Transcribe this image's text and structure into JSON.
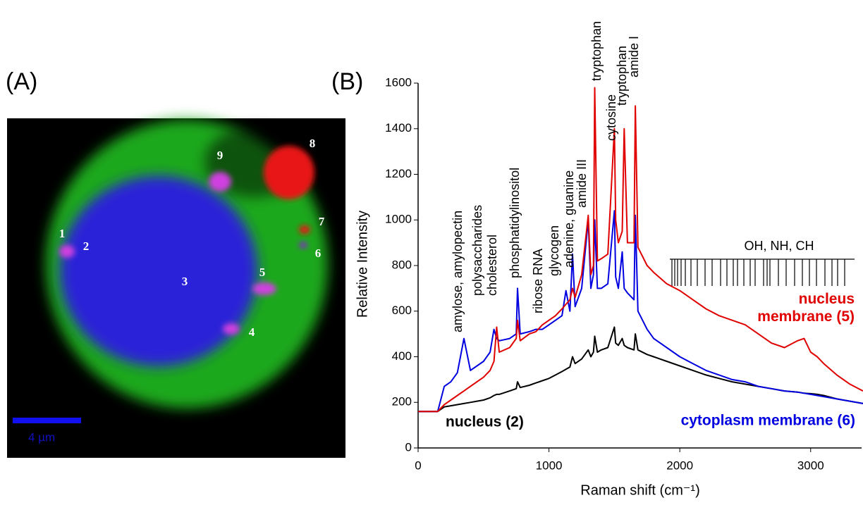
{
  "panel_a": {
    "label": "(A)",
    "spots": [
      "1",
      "2",
      "3",
      "4",
      "5",
      "6",
      "7",
      "8",
      "9"
    ],
    "scale_bar": "4 µm"
  },
  "chart_data": {
    "type": "line",
    "panel_label": "(B)",
    "xlabel": "Raman shift (cm⁻¹)",
    "ylabel": "Relative Intensity",
    "xlim": [
      0,
      3400
    ],
    "ylim": [
      0,
      1600
    ],
    "xticks": [
      0,
      1000,
      2000,
      3000
    ],
    "yticks": [
      0,
      200,
      400,
      600,
      800,
      1000,
      1200,
      1400,
      1600
    ],
    "x": [
      0,
      150,
      200,
      250,
      300,
      350,
      400,
      450,
      500,
      550,
      580,
      600,
      620,
      700,
      750,
      760,
      780,
      850,
      900,
      950,
      1000,
      1050,
      1100,
      1130,
      1160,
      1180,
      1200,
      1250,
      1300,
      1320,
      1340,
      1350,
      1370,
      1400,
      1450,
      1500,
      1510,
      1530,
      1560,
      1575,
      1600,
      1650,
      1660,
      1680,
      1750,
      1800,
      1900,
      2000,
      2100,
      2200,
      2300,
      2400,
      2500,
      2600,
      2700,
      2800,
      2900,
      2950,
      3000,
      3050,
      3100,
      3200,
      3300,
      3400
    ],
    "series": [
      {
        "name": "nucleus membrane (5)",
        "color": "#e00000",
        "values": [
          160,
          160,
          190,
          210,
          230,
          250,
          270,
          290,
          310,
          340,
          380,
          530,
          420,
          440,
          480,
          560,
          470,
          500,
          510,
          540,
          560,
          580,
          610,
          630,
          650,
          700,
          660,
          760,
          1020,
          760,
          800,
          1580,
          820,
          830,
          850,
          1400,
          1000,
          900,
          950,
          1400,
          900,
          900,
          1500,
          880,
          800,
          770,
          720,
          690,
          650,
          610,
          580,
          560,
          540,
          500,
          460,
          440,
          470,
          480,
          420,
          400,
          370,
          320,
          280,
          250
        ]
      },
      {
        "name": "cytoplasm membrane (6)",
        "color": "#0000e0",
        "values": [
          160,
          160,
          270,
          290,
          330,
          480,
          340,
          360,
          380,
          420,
          520,
          480,
          470,
          480,
          500,
          700,
          500,
          510,
          520,
          520,
          540,
          560,
          580,
          690,
          600,
          850,
          620,
          700,
          1000,
          700,
          760,
          1000,
          700,
          700,
          720,
          1040,
          750,
          700,
          860,
          700,
          680,
          650,
          1020,
          600,
          520,
          480,
          440,
          400,
          370,
          340,
          320,
          300,
          290,
          270,
          260,
          250,
          245,
          240,
          235,
          230,
          225,
          215,
          205,
          195
        ]
      },
      {
        "name": "nucleus (2)",
        "color": "#000000",
        "values": [
          160,
          160,
          180,
          185,
          190,
          195,
          200,
          205,
          210,
          220,
          230,
          235,
          235,
          250,
          260,
          290,
          265,
          275,
          285,
          295,
          305,
          320,
          335,
          345,
          355,
          400,
          370,
          390,
          430,
          400,
          420,
          490,
          420,
          430,
          440,
          530,
          460,
          450,
          480,
          450,
          440,
          430,
          500,
          430,
          410,
          400,
          380,
          360,
          340,
          320,
          305,
          290,
          280,
          270,
          260,
          250,
          245,
          240,
          238,
          235,
          230,
          215,
          205,
          195
        ]
      }
    ],
    "annotations": [
      "amylose, amylopectin",
      "polysaccharides",
      "cholesterol",
      "phosphatidylinositol",
      "ribose RNA",
      "glycogen",
      "adenine, guanine",
      "amide III",
      "tryptophan",
      "cytosine",
      "tryptophan",
      "amide I",
      "OH, NH, CH"
    ]
  }
}
